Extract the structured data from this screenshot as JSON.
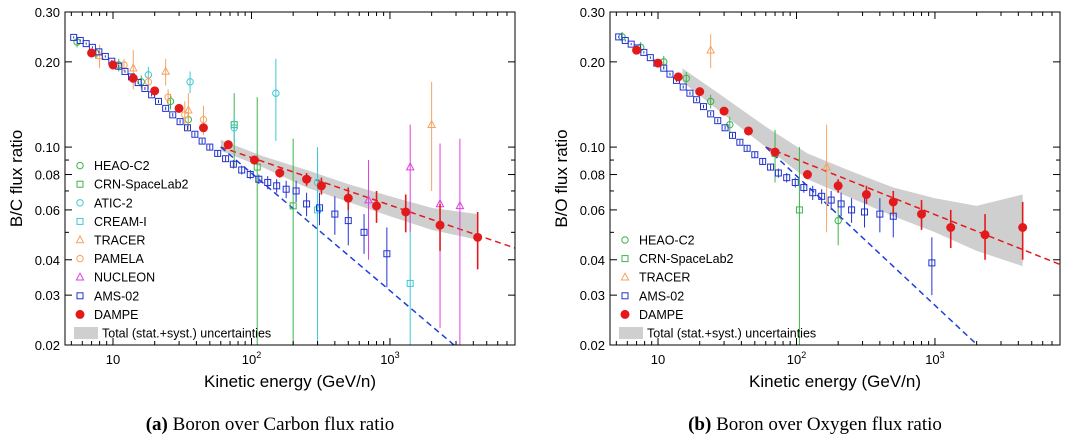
{
  "chart_data": [
    {
      "type": "scatter",
      "xlabel": "Kinetic energy (GeV/n)",
      "ylabel": "B/C flux ratio",
      "xscale": "log",
      "yscale": "log",
      "xlim": [
        4.5,
        8000
      ],
      "ylim": [
        0.02,
        0.3
      ],
      "x_ticks": [
        {
          "v": 10,
          "label": "10"
        },
        {
          "v": 100,
          "label": "10²"
        },
        {
          "v": 1000,
          "label": "10³"
        }
      ],
      "y_ticks": [
        {
          "v": 0.02,
          "label": "0.02"
        },
        {
          "v": 0.03,
          "label": "0.03"
        },
        {
          "v": 0.04,
          "label": "0.04"
        },
        {
          "v": 0.06,
          "label": "0.06"
        },
        {
          "v": 0.08,
          "label": "0.08"
        },
        {
          "v": 0.1,
          "label": "0.10"
        },
        {
          "v": 0.2,
          "label": "0.20"
        },
        {
          "v": 0.3,
          "label": "0.30"
        }
      ],
      "legend_position": "bottom-left",
      "caption": {
        "tag": "(a)",
        "text": "Boron over Carbon flux ratio"
      },
      "series": [
        {
          "name": "HEAO-C2",
          "marker": "circle",
          "color": "#3cb44b",
          "points": [
            [
              5.5,
              0.235,
              0.01
            ],
            [
              7.5,
              0.215,
              0.01
            ],
            [
              11,
              0.195,
              0.01
            ],
            [
              16,
              0.17,
              0.009
            ],
            [
              26,
              0.145,
              0.009
            ],
            [
              35,
              0.125,
              0.008
            ]
          ]
        },
        {
          "name": "CRN-SpaceLab2",
          "marker": "square",
          "color": "#3cb44b",
          "points": [
            [
              75,
              0.12,
              0.035
            ],
            [
              110,
              0.085,
              0.065
            ],
            [
              200,
              0.062,
              0.045
            ]
          ]
        },
        {
          "name": "ATIC-2",
          "marker": "circle",
          "color": "#3ec8d6",
          "points": [
            [
              18,
              0.18,
              0.012
            ],
            [
              36,
              0.17,
              0.015
            ],
            [
              75,
              0.117,
              0.012
            ],
            [
              150,
              0.155,
              0.05
            ],
            [
              300,
              0.075,
              0.02
            ]
          ]
        },
        {
          "name": "CREAM-I",
          "marker": "square",
          "color": "#3ec8d6",
          "points": [
            [
              300,
              0.06,
              0.04
            ],
            [
              1400,
              0.033,
              0.025
            ]
          ]
        },
        {
          "name": "TRACER",
          "marker": "triangle",
          "color": "#f4a460",
          "points": [
            [
              8,
              0.21,
              0.02
            ],
            [
              14,
              0.19,
              0.03
            ],
            [
              24,
              0.185,
              0.02
            ],
            [
              35,
              0.135,
              0.02
            ],
            [
              2000,
              0.12,
              0.05
            ]
          ]
        },
        {
          "name": "PAMELA",
          "marker": "circle",
          "color": "#f4a460",
          "points": [
            [
              12,
              0.195,
              0.01
            ],
            [
              18,
              0.17,
              0.01
            ],
            [
              25,
              0.15,
              0.01
            ],
            [
              33,
              0.13,
              0.015
            ],
            [
              45,
              0.125,
              0.015
            ]
          ]
        },
        {
          "name": "NUCLEON",
          "marker": "triangle",
          "color": "#e040e0",
          "points": [
            [
              700,
              0.065,
              0.025
            ],
            [
              1400,
              0.085,
              0.035
            ],
            [
              2300,
              0.063,
              0.04
            ],
            [
              3200,
              0.062,
              0.045
            ]
          ]
        },
        {
          "name": "AMS-02",
          "marker": "square",
          "color": "#2233cc",
          "points": [
            [
              5.2,
              0.244,
              0.002
            ],
            [
              5.8,
              0.238,
              0.002
            ],
            [
              6.4,
              0.232,
              0.002
            ],
            [
              7.1,
              0.225,
              0.002
            ],
            [
              7.9,
              0.217,
              0.002
            ],
            [
              8.8,
              0.209,
              0.002
            ],
            [
              9.8,
              0.201,
              0.002
            ],
            [
              11,
              0.193,
              0.002
            ],
            [
              12.2,
              0.185,
              0.002
            ],
            [
              13.6,
              0.177,
              0.002
            ],
            [
              15.2,
              0.169,
              0.002
            ],
            [
              17,
              0.161,
              0.002
            ],
            [
              19,
              0.153,
              0.002
            ],
            [
              21.3,
              0.145,
              0.002
            ],
            [
              24,
              0.137,
              0.002
            ],
            [
              27,
              0.13,
              0.002
            ],
            [
              30.5,
              0.123,
              0.002
            ],
            [
              34.5,
              0.117,
              0.002
            ],
            [
              39,
              0.111,
              0.002
            ],
            [
              44,
              0.105,
              0.002
            ],
            [
              50,
              0.1,
              0.002
            ],
            [
              57,
              0.095,
              0.002
            ],
            [
              65,
              0.091,
              0.002
            ],
            [
              74,
              0.087,
              0.003
            ],
            [
              85,
              0.083,
              0.003
            ],
            [
              98,
              0.08,
              0.003
            ],
            [
              113,
              0.077,
              0.003
            ],
            [
              131,
              0.075,
              0.004
            ],
            [
              152,
              0.073,
              0.004
            ],
            [
              178,
              0.071,
              0.005
            ],
            [
              210,
              0.07,
              0.006
            ],
            [
              250,
              0.063,
              0.006
            ],
            [
              310,
              0.061,
              0.008
            ],
            [
              400,
              0.058,
              0.009
            ],
            [
              500,
              0.055,
              0.01
            ],
            [
              650,
              0.05,
              0.008
            ],
            [
              950,
              0.042,
              0.01
            ]
          ]
        },
        {
          "name": "DAMPE",
          "marker": "filled-circle",
          "color": "#e31a1c",
          "points": [
            [
              7,
              0.215,
              0.003
            ],
            [
              10,
              0.195,
              0.003
            ],
            [
              14,
              0.175,
              0.003
            ],
            [
              20,
              0.158,
              0.003
            ],
            [
              30,
              0.137,
              0.003
            ],
            [
              45,
              0.117,
              0.003
            ],
            [
              68,
              0.102,
              0.003
            ],
            [
              105,
              0.09,
              0.003
            ],
            [
              160,
              0.081,
              0.003
            ],
            [
              250,
              0.077,
              0.004
            ],
            [
              320,
              0.073,
              0.005
            ],
            [
              500,
              0.066,
              0.006
            ],
            [
              800,
              0.062,
              0.008
            ],
            [
              1300,
              0.059,
              0.009
            ],
            [
              2300,
              0.053,
              0.01
            ],
            [
              4300,
              0.048,
              0.011
            ]
          ]
        }
      ],
      "fits": [
        {
          "color": "#e31a1c",
          "x": [
            60,
            8000
          ],
          "y": [
            0.1,
            0.044
          ]
        },
        {
          "color": "#1f3fd8",
          "x": [
            60,
            3500
          ],
          "y": [
            0.1,
            0.0185
          ]
        }
      ],
      "band": {
        "name": "Total (stat.+syst.) uncertainties",
        "color": "#cfcfcf",
        "x": [
          60,
          120,
          250,
          500,
          1000,
          2000,
          4300
        ],
        "lo": [
          0.097,
          0.085,
          0.072,
          0.064,
          0.057,
          0.051,
          0.047
        ],
        "hi": [
          0.106,
          0.093,
          0.083,
          0.074,
          0.067,
          0.061,
          0.058
        ]
      }
    },
    {
      "type": "scatter",
      "xlabel": "Kinetic energy (GeV/n)",
      "ylabel": "B/O flux ratio",
      "xscale": "log",
      "yscale": "log",
      "xlim": [
        4.5,
        8000
      ],
      "ylim": [
        0.02,
        0.3
      ],
      "x_ticks": [
        {
          "v": 10,
          "label": "10"
        },
        {
          "v": 100,
          "label": "10²"
        },
        {
          "v": 1000,
          "label": "10³"
        }
      ],
      "y_ticks": [
        {
          "v": 0.02,
          "label": "0.02"
        },
        {
          "v": 0.03,
          "label": "0.03"
        },
        {
          "v": 0.04,
          "label": "0.04"
        },
        {
          "v": 0.06,
          "label": "0.06"
        },
        {
          "v": 0.08,
          "label": "0.08"
        },
        {
          "v": 0.1,
          "label": "0.10"
        },
        {
          "v": 0.2,
          "label": "0.20"
        },
        {
          "v": 0.3,
          "label": "0.30"
        }
      ],
      "legend_position": "bottom-left",
      "caption": {
        "tag": "(b)",
        "text": "Boron over Oxygen flux ratio"
      },
      "series": [
        {
          "name": "HEAO-C2",
          "marker": "circle",
          "color": "#3cb44b",
          "points": [
            [
              5.5,
              0.245,
              0.01
            ],
            [
              7.5,
              0.225,
              0.01
            ],
            [
              11,
              0.2,
              0.01
            ],
            [
              16,
              0.175,
              0.009
            ],
            [
              24,
              0.145,
              0.008
            ],
            [
              33,
              0.12,
              0.008
            ],
            [
              200,
              0.055,
              0.01
            ]
          ]
        },
        {
          "name": "CRN-SpaceLab2",
          "marker": "square",
          "color": "#3cb44b",
          "points": [
            [
              70,
              0.095,
              0.02
            ],
            [
              105,
              0.06,
              0.04
            ]
          ]
        },
        {
          "name": "TRACER",
          "marker": "triangle",
          "color": "#f4a460",
          "points": [
            [
              24,
              0.22,
              0.03
            ],
            [
              165,
              0.085,
              0.035
            ]
          ]
        },
        {
          "name": "AMS-02",
          "marker": "square",
          "color": "#2233cc",
          "points": [
            [
              5.2,
              0.245,
              0.002
            ],
            [
              5.8,
              0.238,
              0.002
            ],
            [
              6.4,
              0.231,
              0.002
            ],
            [
              7.1,
              0.224,
              0.002
            ],
            [
              7.9,
              0.216,
              0.002
            ],
            [
              8.8,
              0.207,
              0.002
            ],
            [
              9.8,
              0.198,
              0.002
            ],
            [
              11,
              0.19,
              0.002
            ],
            [
              12.2,
              0.181,
              0.002
            ],
            [
              13.6,
              0.172,
              0.002
            ],
            [
              15.2,
              0.163,
              0.002
            ],
            [
              17,
              0.155,
              0.002
            ],
            [
              19,
              0.147,
              0.002
            ],
            [
              21.3,
              0.139,
              0.002
            ],
            [
              24,
              0.131,
              0.002
            ],
            [
              27,
              0.124,
              0.002
            ],
            [
              30.5,
              0.117,
              0.002
            ],
            [
              34.5,
              0.11,
              0.002
            ],
            [
              39,
              0.104,
              0.002
            ],
            [
              44,
              0.099,
              0.002
            ],
            [
              50,
              0.094,
              0.002
            ],
            [
              57,
              0.089,
              0.002
            ],
            [
              65,
              0.085,
              0.002
            ],
            [
              74,
              0.081,
              0.003
            ],
            [
              85,
              0.078,
              0.003
            ],
            [
              98,
              0.075,
              0.003
            ],
            [
              113,
              0.072,
              0.003
            ],
            [
              131,
              0.069,
              0.004
            ],
            [
              152,
              0.067,
              0.004
            ],
            [
              178,
              0.065,
              0.005
            ],
            [
              210,
              0.063,
              0.006
            ],
            [
              250,
              0.06,
              0.006
            ],
            [
              310,
              0.059,
              0.007
            ],
            [
              400,
              0.058,
              0.008
            ],
            [
              500,
              0.057,
              0.009
            ],
            [
              950,
              0.039,
              0.009
            ]
          ]
        },
        {
          "name": "DAMPE",
          "marker": "filled-circle",
          "color": "#e31a1c",
          "points": [
            [
              7,
              0.22,
              0.003
            ],
            [
              10,
              0.198,
              0.003
            ],
            [
              14,
              0.177,
              0.003
            ],
            [
              20,
              0.157,
              0.003
            ],
            [
              30,
              0.134,
              0.003
            ],
            [
              45,
              0.114,
              0.003
            ],
            [
              70,
              0.096,
              0.003
            ],
            [
              120,
              0.08,
              0.003
            ],
            [
              200,
              0.073,
              0.004
            ],
            [
              320,
              0.068,
              0.005
            ],
            [
              500,
              0.064,
              0.006
            ],
            [
              800,
              0.058,
              0.007
            ],
            [
              1300,
              0.052,
              0.008
            ],
            [
              2300,
              0.049,
              0.009
            ],
            [
              4300,
              0.052,
              0.012
            ]
          ]
        }
      ],
      "fits": [
        {
          "color": "#e31a1c",
          "x": [
            60,
            8000
          ],
          "y": [
            0.1,
            0.0385
          ]
        },
        {
          "color": "#1f3fd8",
          "x": [
            60,
            2400
          ],
          "y": [
            0.1,
            0.0185
          ]
        }
      ],
      "band": {
        "name": "Total (stat.+syst.) uncertainties",
        "color": "#cfcfcf",
        "x": [
          15,
          30,
          60,
          120,
          250,
          500,
          1000,
          2000,
          4300
        ],
        "lo": [
          0.17,
          0.13,
          0.1,
          0.077,
          0.066,
          0.057,
          0.05,
          0.043,
          0.038
        ],
        "hi": [
          0.19,
          0.15,
          0.118,
          0.095,
          0.082,
          0.072,
          0.066,
          0.062,
          0.068
        ]
      }
    }
  ]
}
